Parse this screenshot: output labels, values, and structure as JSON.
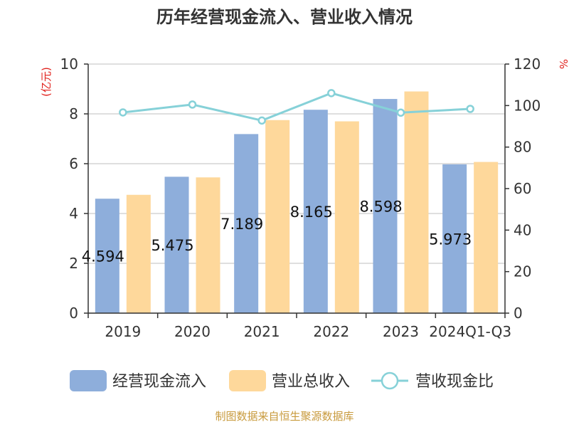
{
  "chart_data": {
    "type": "bar",
    "title": "历年经营现金流入、营业收入情况",
    "categories": [
      "2019",
      "2020",
      "2021",
      "2022",
      "2023",
      "2024Q1-Q3"
    ],
    "series": [
      {
        "name": "经营现金流入",
        "kind": "bar",
        "axis": "left",
        "values": [
          4.594,
          5.475,
          7.189,
          8.165,
          8.598,
          5.973
        ],
        "labels": [
          "4.594",
          "5.475",
          "7.189",
          "8.165",
          "8.598",
          "5.973"
        ],
        "color": "#8eaedb"
      },
      {
        "name": "营业总收入",
        "kind": "bar",
        "axis": "left",
        "values": [
          4.75,
          5.45,
          7.75,
          7.7,
          8.9,
          6.07
        ],
        "color": "#fed89b"
      },
      {
        "name": "营收现金比",
        "kind": "line",
        "axis": "right",
        "values": [
          96.7,
          100.5,
          92.8,
          106.0,
          96.6,
          98.4
        ],
        "color": "#86d1d8"
      }
    ],
    "left_axis": {
      "unit": "(亿元)",
      "ylim": [
        0,
        10
      ],
      "ticks": [
        "0",
        "2",
        "4",
        "6",
        "8",
        "10"
      ]
    },
    "right_axis": {
      "unit": "%",
      "ylim": [
        0,
        120
      ],
      "ticks": [
        "0",
        "20",
        "40",
        "60",
        "80",
        "100",
        "120"
      ]
    },
    "grid": true,
    "legend_position": "bottom"
  },
  "source": "制图数据来自恒生聚源数据库"
}
